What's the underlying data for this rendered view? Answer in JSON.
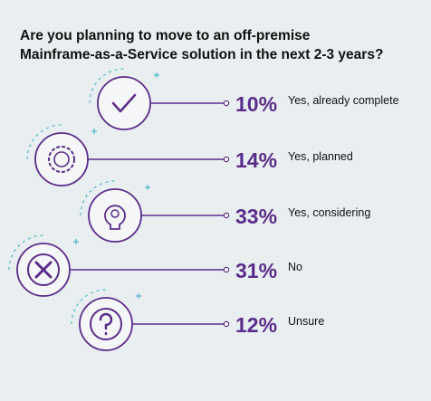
{
  "chart_data": {
    "type": "icon-list",
    "title": "Are you planning to move to an off-premise Mainframe-as-a-Service solution in the next 2-3 years?",
    "categories": [
      "Yes, already complete",
      "Yes, planned",
      "Yes, considering",
      "No",
      "Unsure"
    ],
    "values": [
      10,
      14,
      33,
      31,
      12
    ],
    "value_labels": [
      "10%",
      "14%",
      "33%",
      "31%",
      "12%"
    ],
    "color": "#5a2d8c"
  }
}
